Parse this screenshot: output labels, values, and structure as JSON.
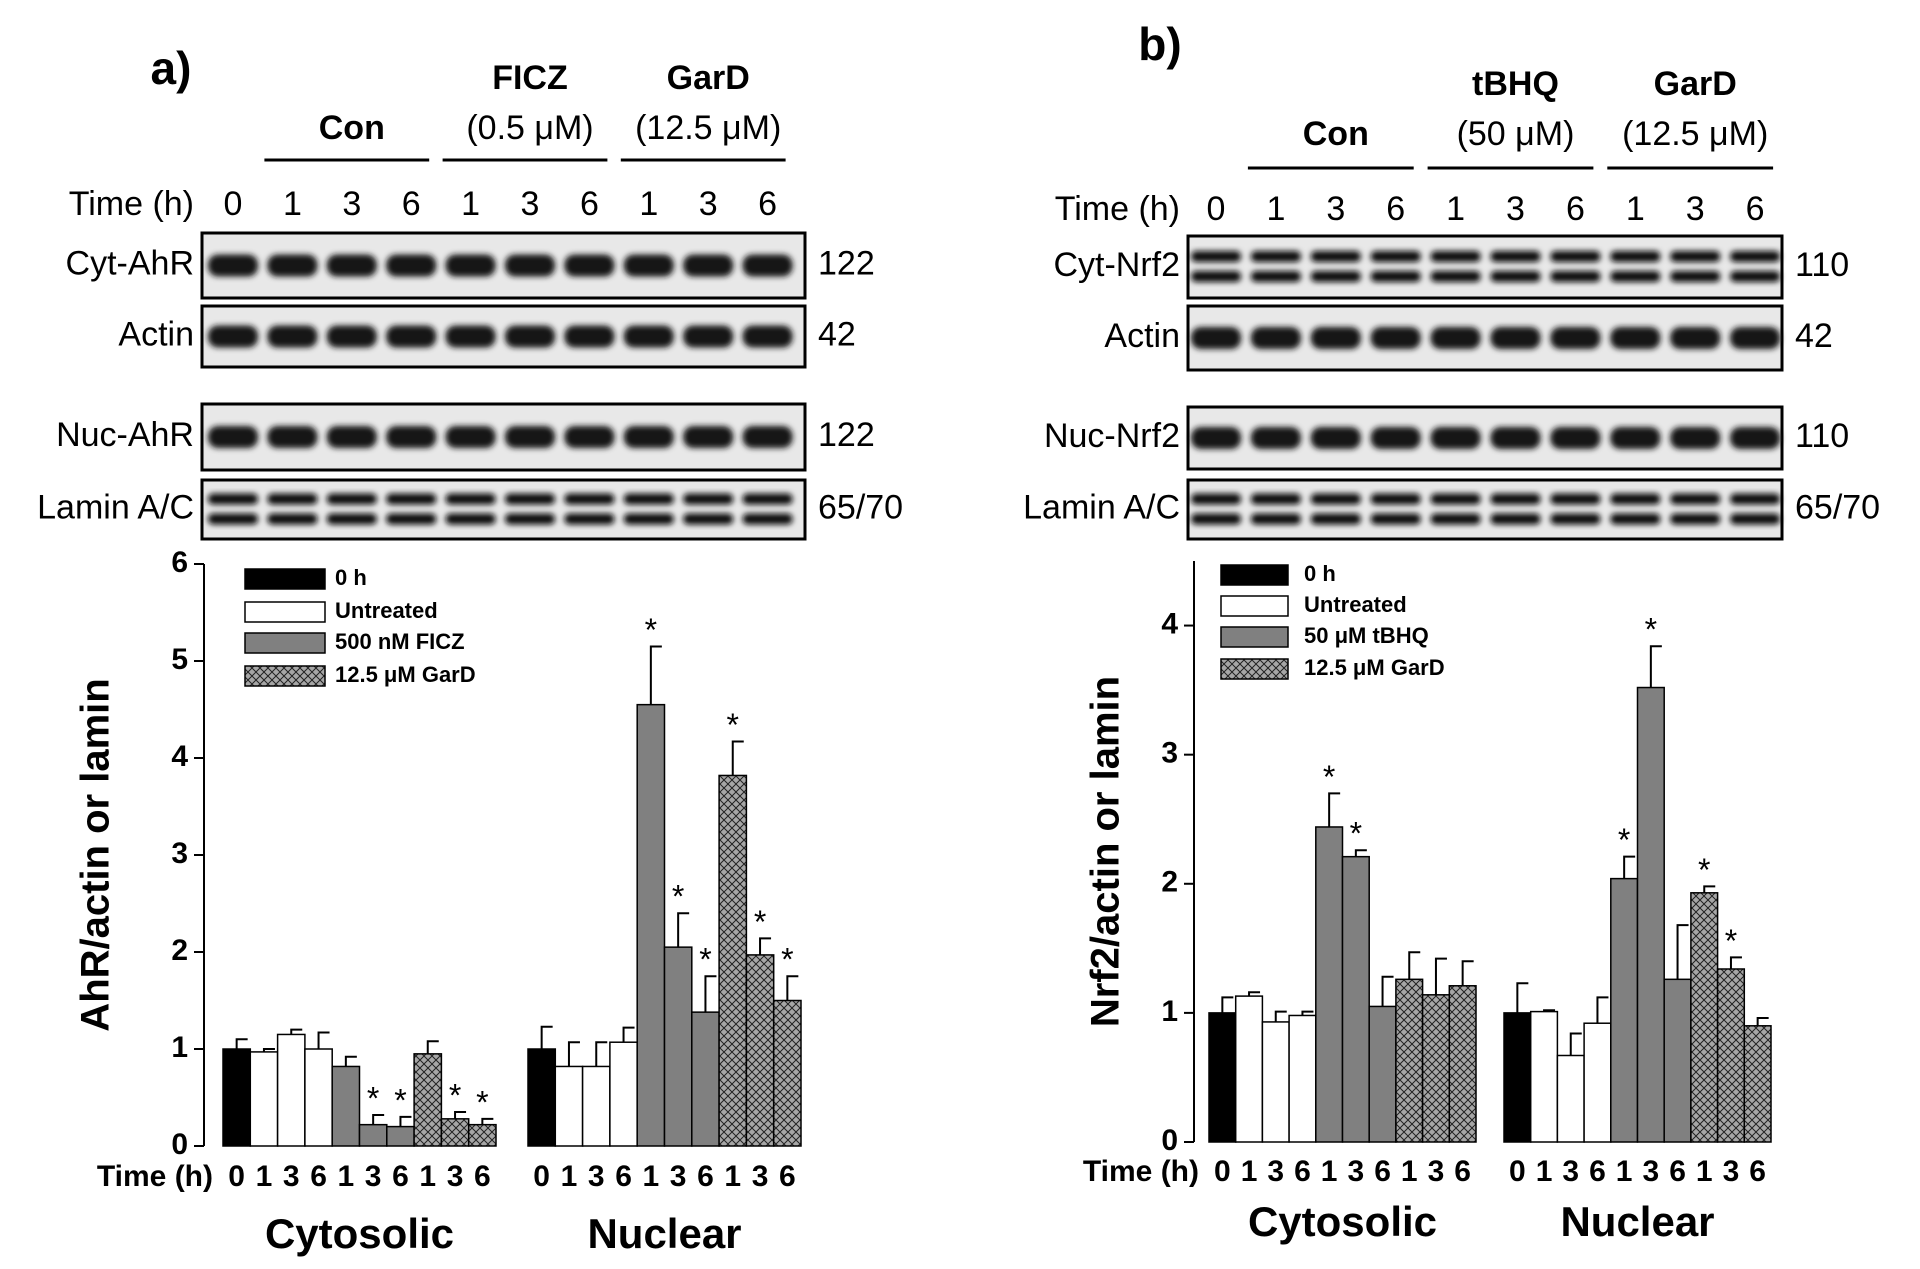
{
  "chart_data": [
    {
      "type": "bar",
      "title": "a)",
      "blot": {
        "time_label": "Time (h)",
        "lanes": [
          "0",
          "1",
          "3",
          "6",
          "1",
          "3",
          "6",
          "1",
          "3",
          "6"
        ],
        "groups": [
          {
            "name": "Con"
          },
          {
            "name": "FICZ",
            "dose": "(0.5 μM)"
          },
          {
            "name": "GarD",
            "dose": "(12.5 μM)"
          }
        ],
        "rows": [
          {
            "label": "Cyt-AhR",
            "size": "122"
          },
          {
            "label": "Actin",
            "size": "42"
          },
          {
            "label": "Nuc-AhR",
            "size": "122"
          },
          {
            "label": "Lamin A/C",
            "size": "65/70"
          }
        ]
      },
      "ylabel": "AhR/actin or lamin",
      "xlabel": "Time (h)",
      "groups": [
        "Cytosolic",
        "Nuclear"
      ],
      "categories": [
        "0",
        "1",
        "3",
        "6",
        "1",
        "3",
        "6",
        "1",
        "3",
        "6",
        "0",
        "1",
        "3",
        "6",
        "1",
        "3",
        "6",
        "1",
        "3",
        "6"
      ],
      "ylim": [
        0,
        6
      ],
      "yticks": [
        0,
        1,
        2,
        3,
        4,
        5,
        6
      ],
      "series": [
        {
          "name": "0 h",
          "color": "#000000",
          "values": [
            1,
            null,
            null,
            null,
            null,
            null,
            null,
            null,
            null,
            null,
            1,
            null,
            null,
            null,
            null,
            null,
            null,
            null,
            null,
            null
          ],
          "errors": [
            0.1,
            null,
            null,
            null,
            null,
            null,
            null,
            null,
            null,
            null,
            0.23,
            null,
            null,
            null,
            null,
            null,
            null,
            null,
            null,
            null
          ],
          "markers": [
            null,
            null,
            null,
            null,
            null,
            null,
            null,
            null,
            null,
            null,
            null,
            null,
            null,
            null,
            null,
            null,
            null,
            null,
            null,
            null
          ]
        },
        {
          "name": "Untreated",
          "color": "#ffffff",
          "values": [
            null,
            0.97,
            1.15,
            1,
            null,
            null,
            null,
            null,
            null,
            null,
            null,
            0.82,
            0.82,
            1.07,
            null,
            null,
            null,
            null,
            null,
            null
          ],
          "errors": [
            null,
            0.03,
            0.05,
            0.17,
            null,
            null,
            null,
            null,
            null,
            null,
            null,
            0.25,
            0.25,
            0.15,
            null,
            null,
            null,
            null,
            null,
            null
          ],
          "markers": [
            null,
            null,
            null,
            null,
            null,
            null,
            null,
            null,
            null,
            null,
            null,
            null,
            null,
            null,
            null,
            null,
            null,
            null,
            null,
            null
          ]
        },
        {
          "name": "500 nM FICZ",
          "color": "#808080",
          "values": [
            null,
            null,
            null,
            null,
            0.82,
            0.22,
            0.2,
            null,
            null,
            null,
            null,
            null,
            null,
            null,
            4.55,
            2.05,
            1.38,
            null,
            null,
            null
          ],
          "errors": [
            null,
            null,
            null,
            null,
            0.1,
            0.1,
            0.1,
            null,
            null,
            null,
            null,
            null,
            null,
            null,
            0.6,
            0.35,
            0.37,
            null,
            null,
            null
          ],
          "markers": [
            null,
            null,
            null,
            null,
            null,
            "*",
            "*",
            null,
            null,
            null,
            null,
            null,
            null,
            null,
            "*",
            "*",
            "*",
            null,
            null,
            null
          ]
        },
        {
          "name": "12.5 μM GarD",
          "color": "#a6a6a6",
          "hatch": true,
          "values": [
            null,
            null,
            null,
            null,
            null,
            null,
            null,
            0.95,
            0.28,
            0.22,
            null,
            null,
            null,
            null,
            null,
            null,
            null,
            3.82,
            1.97,
            1.5
          ],
          "errors": [
            null,
            null,
            null,
            null,
            null,
            null,
            null,
            0.13,
            0.07,
            0.06,
            null,
            null,
            null,
            null,
            null,
            null,
            null,
            0.35,
            0.17,
            0.25
          ],
          "markers": [
            null,
            null,
            null,
            null,
            null,
            null,
            null,
            null,
            "*",
            "*",
            null,
            null,
            null,
            null,
            null,
            null,
            null,
            "*",
            "*",
            "*"
          ]
        }
      ]
    },
    {
      "type": "bar",
      "title": "b)",
      "blot": {
        "time_label": "Time (h)",
        "lanes": [
          "0",
          "1",
          "3",
          "6",
          "1",
          "3",
          "6",
          "1",
          "3",
          "6"
        ],
        "groups": [
          {
            "name": "Con"
          },
          {
            "name": "tBHQ",
            "dose": "(50 μM)"
          },
          {
            "name": "GarD",
            "dose": "(12.5 μM)"
          }
        ],
        "rows": [
          {
            "label": "Cyt-Nrf2",
            "size": "110"
          },
          {
            "label": "Actin",
            "size": "42"
          },
          {
            "label": "Nuc-Nrf2",
            "size": "110"
          },
          {
            "label": "Lamin A/C",
            "size": "65/70"
          }
        ]
      },
      "ylabel": "Nrf2/actin or lamin",
      "xlabel": "Time (h)",
      "groups": [
        "Cytosolic",
        "Nuclear"
      ],
      "categories": [
        "0",
        "1",
        "3",
        "6",
        "1",
        "3",
        "6",
        "1",
        "3",
        "6",
        "0",
        "1",
        "3",
        "6",
        "1",
        "3",
        "6",
        "1",
        "3",
        "6"
      ],
      "ylim": [
        0,
        4.5
      ],
      "yticks": [
        0,
        1,
        2,
        3,
        4
      ],
      "series": [
        {
          "name": "0 h",
          "color": "#000000",
          "values": [
            1,
            null,
            null,
            null,
            null,
            null,
            null,
            null,
            null,
            null,
            1,
            null,
            null,
            null,
            null,
            null,
            null,
            null,
            null,
            null
          ],
          "errors": [
            0.12,
            null,
            null,
            null,
            null,
            null,
            null,
            null,
            null,
            null,
            0.23,
            null,
            null,
            null,
            null,
            null,
            null,
            null,
            null,
            null
          ],
          "markers": [
            null,
            null,
            null,
            null,
            null,
            null,
            null,
            null,
            null,
            null,
            null,
            null,
            null,
            null,
            null,
            null,
            null,
            null,
            null,
            null
          ]
        },
        {
          "name": "Untreated",
          "color": "#ffffff",
          "values": [
            null,
            1.13,
            0.93,
            0.98,
            null,
            null,
            null,
            null,
            null,
            null,
            null,
            1.01,
            0.67,
            0.92,
            null,
            null,
            null,
            null,
            null,
            null
          ],
          "errors": [
            null,
            0.03,
            0.08,
            0.03,
            null,
            null,
            null,
            null,
            null,
            null,
            null,
            0.01,
            0.17,
            0.2,
            null,
            null,
            null,
            null,
            null,
            null
          ],
          "markers": [
            null,
            null,
            null,
            null,
            null,
            null,
            null,
            null,
            null,
            null,
            null,
            null,
            null,
            null,
            null,
            null,
            null,
            null,
            null,
            null
          ]
        },
        {
          "name": "50 μM tBHQ",
          "color": "#808080",
          "values": [
            null,
            null,
            null,
            null,
            2.44,
            2.21,
            1.05,
            null,
            null,
            null,
            null,
            null,
            null,
            null,
            2.04,
            3.52,
            1.26,
            null,
            null,
            null
          ],
          "errors": [
            null,
            null,
            null,
            null,
            0.26,
            0.05,
            0.23,
            null,
            null,
            null,
            null,
            null,
            null,
            null,
            0.17,
            0.32,
            0.42,
            null,
            null,
            null
          ],
          "markers": [
            null,
            null,
            null,
            null,
            "*",
            "*",
            null,
            null,
            null,
            null,
            null,
            null,
            null,
            null,
            "*",
            "*",
            null,
            null,
            null,
            null
          ]
        },
        {
          "name": "12.5 μM GarD",
          "color": "#a6a6a6",
          "hatch": true,
          "values": [
            null,
            null,
            null,
            null,
            null,
            null,
            null,
            1.26,
            1.14,
            1.21,
            null,
            null,
            null,
            null,
            null,
            null,
            null,
            1.93,
            1.34,
            0.9
          ],
          "errors": [
            null,
            null,
            null,
            null,
            null,
            null,
            null,
            0.21,
            0.28,
            0.19,
            null,
            null,
            null,
            null,
            null,
            null,
            null,
            0.05,
            0.09,
            0.06
          ],
          "markers": [
            null,
            null,
            null,
            null,
            null,
            null,
            null,
            null,
            null,
            null,
            null,
            null,
            null,
            null,
            null,
            null,
            null,
            "*",
            "*",
            null
          ]
        }
      ]
    }
  ]
}
